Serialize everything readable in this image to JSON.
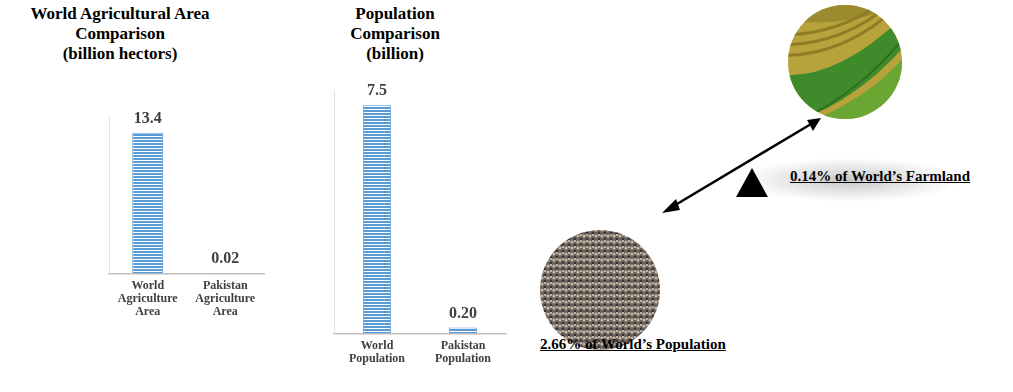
{
  "chart_data": [
    {
      "type": "bar",
      "title": [
        "World Agricultural Area",
        "Comparison",
        "(billion hectors)"
      ],
      "categories": [
        "World Agriculture Area",
        "Pakistan Agriculture Area"
      ],
      "values": [
        13.4,
        0.02
      ],
      "color": "#5b9bd5",
      "ylim": [
        0,
        15
      ],
      "data_labels": true,
      "tick_labels": "x",
      "grid": false
    },
    {
      "type": "bar",
      "title": [
        "Population",
        "Comparison",
        "(billion)"
      ],
      "categories": [
        "World Population",
        "Pakistan Population"
      ],
      "values": [
        7.5,
        0.2
      ],
      "value_labels": [
        "7.5",
        "0.20"
      ],
      "color": "#5b9bd5",
      "ylim": [
        0,
        8
      ],
      "data_labels": true,
      "tick_labels": "x",
      "grid": false
    }
  ],
  "annotations": [
    {
      "text": "0.14% of World’s Farmland"
    },
    {
      "text": "2.66% of World’s Population"
    }
  ]
}
